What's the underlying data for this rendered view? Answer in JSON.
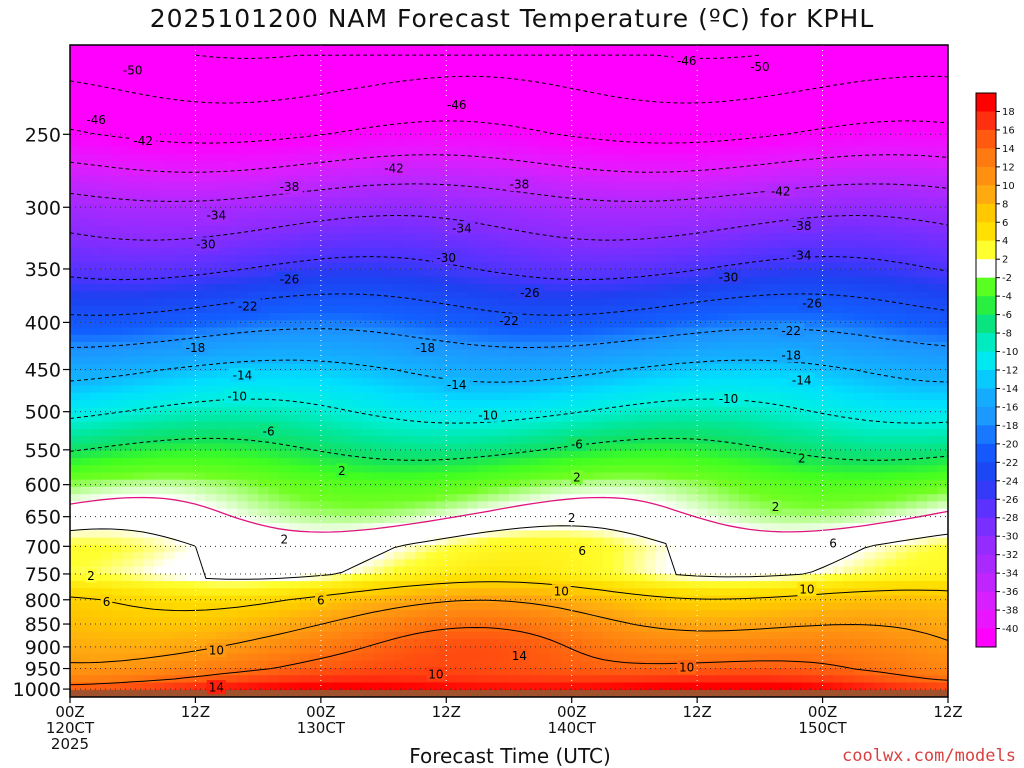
{
  "chart_data": {
    "type": "heatmap",
    "title": "2025101200 NAM Forecast Temperature (ºC) for KPHL",
    "xlabel": "Forecast Time (UTC)",
    "ylabel": "",
    "credit": "coolwx.com/models",
    "y_axis": {
      "reversed": true,
      "range": [
        1020,
        200
      ],
      "ticks": [
        250,
        300,
        350,
        400,
        450,
        500,
        550,
        600,
        650,
        700,
        750,
        800,
        850,
        900,
        950,
        1000
      ]
    },
    "x_axis": {
      "range_hours": [
        0,
        84
      ],
      "ticks": [
        {
          "hour": 0,
          "lines": [
            "00Z",
            "120CT",
            "2025"
          ]
        },
        {
          "hour": 12,
          "lines": [
            "12Z"
          ]
        },
        {
          "hour": 24,
          "lines": [
            "00Z",
            "130CT"
          ]
        },
        {
          "hour": 36,
          "lines": [
            "12Z"
          ]
        },
        {
          "hour": 48,
          "lines": [
            "00Z",
            "140CT"
          ]
        },
        {
          "hour": 60,
          "lines": [
            "12Z"
          ]
        },
        {
          "hour": 72,
          "lines": [
            "00Z",
            "150CT"
          ]
        },
        {
          "hour": 84,
          "lines": [
            "12Z"
          ]
        }
      ]
    },
    "grid": true,
    "ground_below_hpa": 1000,
    "colorbar": {
      "position": "right",
      "levels": [
        18,
        16,
        14,
        12,
        10,
        8,
        6,
        4,
        2,
        -2,
        -4,
        -6,
        -8,
        -10,
        -12,
        -14,
        -16,
        -18,
        -20,
        -22,
        -24,
        -26,
        -28,
        -30,
        -32,
        -34,
        -36,
        -38,
        -40
      ],
      "labels": [
        "18",
        "16",
        "14",
        "12",
        "10",
        "8",
        "6",
        "4",
        "2",
        "-2",
        "-4",
        "-6",
        "-8",
        "-10",
        "-12",
        "-14",
        "-16",
        "-18",
        "-20",
        "-22",
        "-24",
        "-26",
        "-28",
        "-30",
        "-32",
        "-34",
        "-36",
        "-38",
        "-40"
      ]
    },
    "temperature_profile_t0": [
      {
        "hpa": 1000,
        "temp_c": 17
      },
      {
        "hpa": 975,
        "temp_c": 14
      },
      {
        "hpa": 950,
        "temp_c": 12
      },
      {
        "hpa": 900,
        "temp_c": 10
      },
      {
        "hpa": 850,
        "temp_c": 8
      },
      {
        "hpa": 800,
        "temp_c": 6
      },
      {
        "hpa": 750,
        "temp_c": 2
      },
      {
        "hpa": 700,
        "temp_c": 2
      },
      {
        "hpa": 650,
        "temp_c": 0
      },
      {
        "hpa": 600,
        "temp_c": -2
      },
      {
        "hpa": 550,
        "temp_c": -6
      },
      {
        "hpa": 500,
        "temp_c": -10
      },
      {
        "hpa": 450,
        "temp_c": -14
      },
      {
        "hpa": 400,
        "temp_c": -20
      },
      {
        "hpa": 350,
        "temp_c": -26
      },
      {
        "hpa": 300,
        "temp_c": -32
      },
      {
        "hpa": 250,
        "temp_c": -42
      },
      {
        "hpa": 200,
        "temp_c": -50
      }
    ],
    "contour_labels": [
      {
        "text": "-50",
        "hour": 6,
        "hpa": 213
      },
      {
        "text": "-46",
        "hour": 2.5,
        "hpa": 241
      },
      {
        "text": "-42",
        "hour": 7,
        "hpa": 254
      },
      {
        "text": "-38",
        "hour": 21,
        "hpa": 285
      },
      {
        "text": "-34",
        "hour": 14,
        "hpa": 306
      },
      {
        "text": "-30",
        "hour": 13,
        "hpa": 329
      },
      {
        "text": "-26",
        "hour": 21,
        "hpa": 359
      },
      {
        "text": "-22",
        "hour": 17,
        "hpa": 384
      },
      {
        "text": "-18",
        "hour": 12,
        "hpa": 426
      },
      {
        "text": "-14",
        "hour": 16.5,
        "hpa": 456
      },
      {
        "text": "-10",
        "hour": 16,
        "hpa": 481
      },
      {
        "text": "-6",
        "hour": 19,
        "hpa": 525
      },
      {
        "text": "-46",
        "hour": 37,
        "hpa": 232
      },
      {
        "text": "-42",
        "hour": 31,
        "hpa": 272
      },
      {
        "text": "-38",
        "hour": 43,
        "hpa": 283
      },
      {
        "text": "-34",
        "hour": 37.5,
        "hpa": 316
      },
      {
        "text": "-30",
        "hour": 36,
        "hpa": 340
      },
      {
        "text": "-26",
        "hour": 44,
        "hpa": 371
      },
      {
        "text": "-22",
        "hour": 42,
        "hpa": 398
      },
      {
        "text": "-18",
        "hour": 34,
        "hpa": 426
      },
      {
        "text": "-14",
        "hour": 37,
        "hpa": 467
      },
      {
        "text": "-10",
        "hour": 40,
        "hpa": 504
      },
      {
        "text": "-6",
        "hour": 48.5,
        "hpa": 542
      },
      {
        "text": "-46",
        "hour": 59,
        "hpa": 208
      },
      {
        "text": "-50",
        "hour": 66,
        "hpa": 211
      },
      {
        "text": "-42",
        "hour": 68,
        "hpa": 288
      },
      {
        "text": "-38",
        "hour": 70,
        "hpa": 314
      },
      {
        "text": "-34",
        "hour": 70,
        "hpa": 338
      },
      {
        "text": "-30",
        "hour": 63,
        "hpa": 357
      },
      {
        "text": "-26",
        "hour": 71,
        "hpa": 381
      },
      {
        "text": "-22",
        "hour": 69,
        "hpa": 408
      },
      {
        "text": "-18",
        "hour": 69,
        "hpa": 434
      },
      {
        "text": "-14",
        "hour": 70,
        "hpa": 462
      },
      {
        "text": "-10",
        "hour": 63,
        "hpa": 484
      },
      {
        "text": "2",
        "hour": 26,
        "hpa": 579
      },
      {
        "text": "2",
        "hour": 48.5,
        "hpa": 589
      },
      {
        "text": "2",
        "hour": 70,
        "hpa": 561
      },
      {
        "text": "2",
        "hour": 48,
        "hpa": 651
      },
      {
        "text": "2",
        "hour": 67.5,
        "hpa": 634
      },
      {
        "text": "2",
        "hour": 20.5,
        "hpa": 687
      },
      {
        "text": "2",
        "hour": 2,
        "hpa": 753
      },
      {
        "text": "6",
        "hour": 49,
        "hpa": 707
      },
      {
        "text": "6",
        "hour": 73,
        "hpa": 694
      },
      {
        "text": "6",
        "hour": 3.5,
        "hpa": 803
      },
      {
        "text": "6",
        "hour": 24,
        "hpa": 800
      },
      {
        "text": "10",
        "hour": 47,
        "hpa": 783
      },
      {
        "text": "10",
        "hour": 70.5,
        "hpa": 779
      },
      {
        "text": "10",
        "hour": 14,
        "hpa": 907
      },
      {
        "text": "10",
        "hour": 35,
        "hpa": 963
      },
      {
        "text": "10",
        "hour": 59,
        "hpa": 946
      },
      {
        "text": "14",
        "hour": 43,
        "hpa": 920
      },
      {
        "text": "14",
        "hour": 14,
        "hpa": 995
      }
    ]
  }
}
